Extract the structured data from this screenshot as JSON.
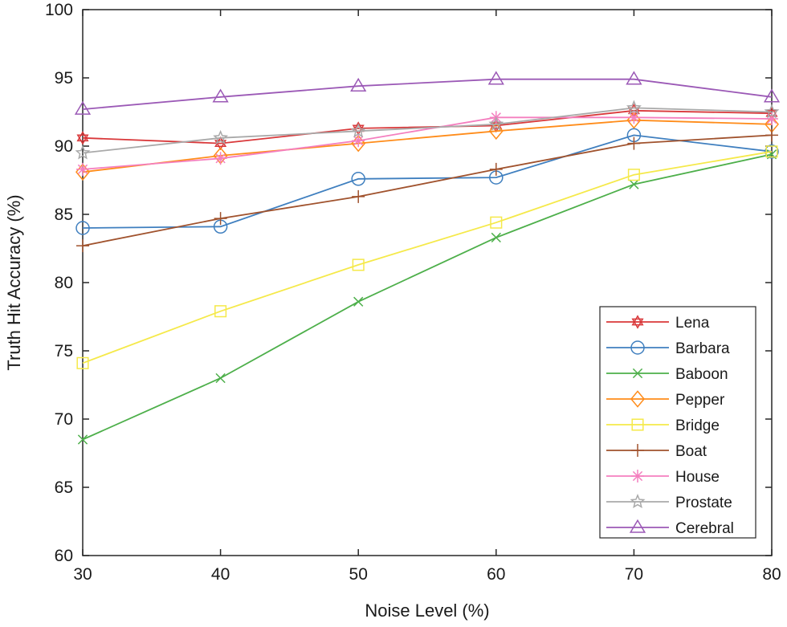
{
  "chart_data": {
    "type": "line",
    "title": "",
    "xlabel": "Noise Level (%)",
    "ylabel": "Truth Hit Accuracy (%)",
    "x": [
      30,
      40,
      50,
      60,
      70,
      80
    ],
    "xlim": [
      30,
      80
    ],
    "ylim": [
      60,
      100
    ],
    "xticks": [
      "30",
      "40",
      "50",
      "60",
      "70",
      "80"
    ],
    "yticks": [
      "60",
      "65",
      "70",
      "75",
      "80",
      "85",
      "90",
      "95",
      "100"
    ],
    "grid": false,
    "legend_position": "bottom-right",
    "series": [
      {
        "name": "Lena",
        "marker": "hexagram",
        "color": "#d9383a",
        "values": [
          90.6,
          90.2,
          91.3,
          91.5,
          92.6,
          92.4
        ]
      },
      {
        "name": "Barbara",
        "marker": "circle",
        "color": "#3f7fbf",
        "values": [
          84.0,
          84.1,
          87.6,
          87.7,
          90.8,
          89.6
        ]
      },
      {
        "name": "Baboon",
        "marker": "x",
        "color": "#4daf4a",
        "values": [
          68.5,
          73.0,
          78.6,
          83.3,
          87.2,
          89.4
        ]
      },
      {
        "name": "Pepper",
        "marker": "diamond",
        "color": "#ff8c1a",
        "values": [
          88.1,
          89.3,
          90.2,
          91.1,
          91.9,
          91.6
        ]
      },
      {
        "name": "Bridge",
        "marker": "square",
        "color": "#f5e94a",
        "values": [
          74.1,
          77.9,
          81.3,
          84.4,
          87.9,
          89.6
        ]
      },
      {
        "name": "Boat",
        "marker": "plus",
        "color": "#a0522d",
        "values": [
          82.7,
          84.7,
          86.3,
          88.3,
          90.2,
          90.8
        ]
      },
      {
        "name": "House",
        "marker": "asterisk",
        "color": "#f47fbf",
        "values": [
          88.3,
          89.1,
          90.4,
          92.1,
          92.1,
          92.0
        ]
      },
      {
        "name": "Prostate",
        "marker": "star",
        "color": "#a9a9a9",
        "values": [
          89.5,
          90.6,
          91.1,
          91.6,
          92.8,
          92.5
        ]
      },
      {
        "name": "Cerebral",
        "marker": "triangle",
        "color": "#9b59b6",
        "values": [
          92.7,
          93.6,
          94.4,
          94.9,
          94.9,
          93.6
        ]
      }
    ]
  }
}
